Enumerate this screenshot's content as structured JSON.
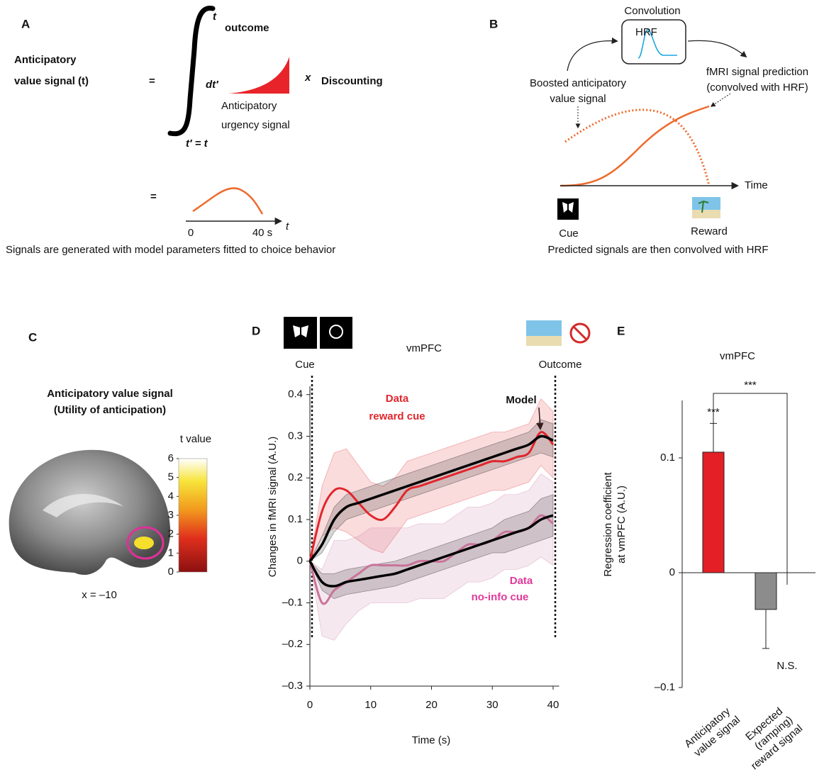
{
  "panel_a": {
    "label": "A",
    "lhs": [
      "Anticipatory",
      "value signal (t)"
    ],
    "equals": "=",
    "upper_limit": "t",
    "upper_limit_sub": "outcome",
    "differential": "dt′",
    "times": "x",
    "discounting": "Discounting",
    "urgency_label": [
      "Anticipatory",
      "urgency signal"
    ],
    "lower_limit": "t′ = t",
    "equals_2": "=",
    "axis_start": "0",
    "axis_end": "40 s",
    "axis_var": "t",
    "caption": "Signals are generated with model parameters fitted to choice behavior"
  },
  "panel_b": {
    "label": "B",
    "box_title": "Convolution",
    "box_label": "HRF",
    "left_label": [
      "Boosted anticipatory",
      "value signal"
    ],
    "right_label": [
      "fMRI signal prediction",
      "(convolved with HRF)"
    ],
    "axis_label": "Time",
    "cue": "Cue",
    "reward": "Reward",
    "caption": "Predicted signals are then convolved with HRF"
  },
  "panel_c": {
    "label": "C",
    "title": [
      "Anticipatory value signal",
      "(Utility of anticipation)"
    ],
    "colorbar_title": "t value",
    "colorbar_lim": [
      0,
      6
    ],
    "colorbar_ticks": [
      0,
      1,
      2,
      3,
      4,
      5,
      6
    ],
    "slice": "x = –10"
  },
  "chart_data": [
    {
      "type": "line",
      "label": "D",
      "title": "vmPFC",
      "events": [
        "Cue",
        "Outcome"
      ],
      "annotations": [
        "Data",
        "reward cue",
        "Model",
        "Data",
        "no-info cue"
      ],
      "xlabel": "Time (s)",
      "ylabel": "Changes in fMRI signal (A.U.)",
      "x": [
        0,
        2,
        4,
        6,
        8,
        10,
        12,
        14,
        16,
        18,
        20,
        22,
        24,
        26,
        28,
        30,
        32,
        34,
        36,
        38,
        40
      ],
      "series": [
        {
          "color": "#e0262c",
          "values": [
            0,
            0.12,
            0.17,
            0.17,
            0.14,
            0.11,
            0.1,
            0.13,
            0.17,
            0.18,
            0.19,
            0.2,
            0.21,
            0.22,
            0.23,
            0.24,
            0.24,
            0.25,
            0.26,
            0.31,
            0.28
          ],
          "error": [
            0,
            0.06,
            0.09,
            0.1,
            0.09,
            0.08,
            0.08,
            0.07,
            0.07,
            0.07,
            0.07,
            0.07,
            0.07,
            0.07,
            0.07,
            0.07,
            0.07,
            0.07,
            0.07,
            0.08,
            0.08
          ]
        },
        {
          "color": "#000000",
          "values": [
            0,
            0.04,
            0.1,
            0.13,
            0.14,
            0.15,
            0.16,
            0.17,
            0.18,
            0.19,
            0.2,
            0.21,
            0.22,
            0.23,
            0.24,
            0.25,
            0.26,
            0.27,
            0.28,
            0.3,
            0.29
          ],
          "error": [
            0,
            0.02,
            0.03,
            0.03,
            0.03,
            0.03,
            0.03,
            0.03,
            0.03,
            0.03,
            0.03,
            0.03,
            0.03,
            0.03,
            0.03,
            0.03,
            0.03,
            0.03,
            0.03,
            0.04,
            0.04
          ]
        },
        {
          "color": "#c9739a",
          "values": [
            0,
            -0.1,
            -0.07,
            -0.05,
            -0.03,
            -0.01,
            -0.01,
            -0.01,
            -0.01,
            0,
            0,
            0,
            0.02,
            0.04,
            0.04,
            0.05,
            0.07,
            0.07,
            0.08,
            0.11,
            0.09
          ],
          "error": [
            0,
            0.08,
            0.12,
            0.1,
            0.09,
            0.09,
            0.09,
            0.09,
            0.09,
            0.09,
            0.09,
            0.09,
            0.09,
            0.09,
            0.09,
            0.09,
            0.09,
            0.09,
            0.09,
            0.1,
            0.1
          ]
        },
        {
          "color": "#000000",
          "values": [
            0,
            -0.05,
            -0.06,
            -0.05,
            -0.045,
            -0.04,
            -0.035,
            -0.03,
            -0.02,
            -0.01,
            0,
            0.01,
            0.02,
            0.03,
            0.04,
            0.05,
            0.06,
            0.07,
            0.08,
            0.1,
            0.11
          ],
          "error": [
            0,
            0.02,
            0.03,
            0.03,
            0.03,
            0.03,
            0.03,
            0.03,
            0.03,
            0.03,
            0.03,
            0.03,
            0.03,
            0.03,
            0.03,
            0.03,
            0.04,
            0.04,
            0.04,
            0.05,
            0.05
          ]
        }
      ],
      "xlim": [
        0,
        41
      ],
      "xticks": [
        0,
        10,
        20,
        30,
        40
      ],
      "ylim": [
        -0.3,
        0.42
      ],
      "yticks": [
        {
          "value": -0.3,
          "label": "–0.3"
        },
        {
          "value": -0.2,
          "label": "–0.2"
        },
        {
          "value": -0.1,
          "label": "–0.1"
        },
        0,
        0.1,
        0.2,
        0.3,
        0.4
      ]
    },
    {
      "type": "bar",
      "label": "E",
      "title": "vmPFC",
      "categories": [
        [
          "Anticipatory",
          "value signal"
        ],
        [
          "Expected",
          "(ramping)",
          "reward signal"
        ]
      ],
      "values": [
        0.105,
        -0.032
      ],
      "errors": [
        0.025,
        0.034
      ],
      "colors": [
        "#e41f26",
        "#8c8c8c"
      ],
      "ylim": [
        -0.1,
        0.15
      ],
      "yticks": [
        {
          "value": -0.1,
          "label": "–0.1"
        },
        0,
        0.1
      ],
      "ylabel": [
        "Regression coefficient",
        "at vmPFC (A.U.)"
      ],
      "value_annotations": [
        "***",
        "N.S."
      ],
      "comparison": "***"
    }
  ]
}
